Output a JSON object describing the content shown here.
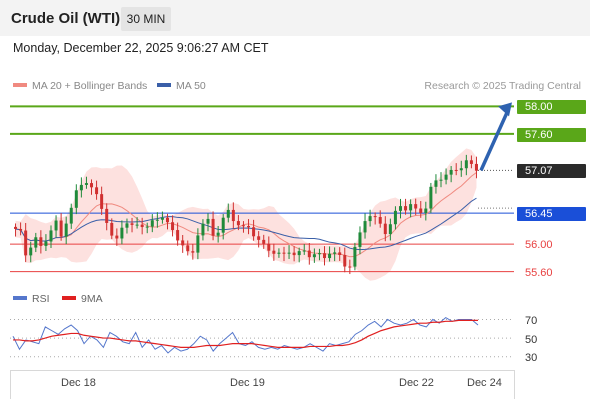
{
  "header": {
    "instrument": "Crude Oil (WTI)",
    "timeframe": "30 MIN"
  },
  "timestamp": "Monday, December 22, 2025 9:06:27 AM CET",
  "legend": {
    "ma20": {
      "label": "MA 20 + Bollinger Bands",
      "color": "#f08a80"
    },
    "ma50": {
      "label": "MA 50",
      "color": "#3a5fa8"
    },
    "credit": "Research © 2025 Trading Central"
  },
  "rsi_legend": {
    "rsi": {
      "label": "RSI",
      "color": "#5577cc"
    },
    "ma9": {
      "label": "9MA",
      "color": "#e02020"
    }
  },
  "colors": {
    "resistance": "#5aa719",
    "pivot": "#1a4fd8",
    "support": "#e84040",
    "current": "#2a2a2a",
    "arrow": "#2e62b0",
    "band": "#fde1df",
    "candle_up": "#1f8a3a",
    "candle_down": "#d03030"
  },
  "chart_data": [
    {
      "type": "candlestick",
      "title": "Crude Oil (WTI)",
      "timeframe": "30 MIN",
      "x_tick_labels": [
        "Dec 18",
        "Dec 19",
        "Dec 22",
        "Dec 24"
      ],
      "y_range": [
        55.45,
        58.15
      ],
      "current_price": "57.07",
      "target_arrow": {
        "from": 57.07,
        "to": 58.0
      },
      "levels": [
        {
          "label": "58.00",
          "value": 58.0,
          "kind": "resistance",
          "style": "badge"
        },
        {
          "label": "57.60",
          "value": 57.6,
          "kind": "resistance",
          "style": "badge"
        },
        {
          "label": "57.07",
          "value": 57.07,
          "kind": "current",
          "style": "badge"
        },
        {
          "label": "56.45",
          "value": 56.45,
          "kind": "pivot",
          "style": "badge"
        },
        {
          "label": "56.00",
          "value": 56.0,
          "kind": "support",
          "style": "text"
        },
        {
          "label": "55.60",
          "value": 55.6,
          "kind": "support",
          "style": "text"
        }
      ],
      "series": [
        {
          "name": "MA 20 + Bollinger Bands",
          "kind": "band_and_line"
        },
        {
          "name": "MA 50",
          "kind": "line"
        }
      ],
      "close_path": [
        [
          0,
          56.2
        ],
        [
          1,
          56.15
        ],
        [
          2,
          55.85
        ],
        [
          3,
          56.0
        ],
        [
          4,
          56.1
        ],
        [
          5,
          55.95
        ],
        [
          6,
          56.05
        ],
        [
          7,
          56.2
        ],
        [
          8,
          56.3
        ],
        [
          9,
          56.1
        ],
        [
          10,
          56.35
        ],
        [
          11,
          56.55
        ],
        [
          12,
          56.75
        ],
        [
          13,
          56.85
        ],
        [
          14,
          56.9
        ],
        [
          15,
          56.8
        ],
        [
          16,
          56.7
        ],
        [
          17,
          56.55
        ],
        [
          18,
          56.35
        ],
        [
          19,
          56.1
        ],
        [
          20,
          56.05
        ],
        [
          21,
          56.25
        ],
        [
          22,
          56.3
        ],
        [
          23,
          56.25
        ],
        [
          24,
          56.3
        ],
        [
          25,
          56.3
        ],
        [
          26,
          56.25
        ],
        [
          27,
          56.3
        ],
        [
          28,
          56.35
        ],
        [
          29,
          56.4
        ],
        [
          30,
          56.3
        ],
        [
          31,
          56.2
        ],
        [
          32,
          56.1
        ],
        [
          33,
          56.0
        ],
        [
          34,
          55.85
        ],
        [
          35,
          55.85
        ],
        [
          36,
          56.15
        ],
        [
          37,
          56.3
        ],
        [
          38,
          56.35
        ],
        [
          39,
          56.15
        ],
        [
          40,
          56.2
        ],
        [
          41,
          56.35
        ],
        [
          42,
          56.45
        ],
        [
          43,
          56.35
        ],
        [
          44,
          56.3
        ],
        [
          45,
          56.25
        ],
        [
          46,
          56.25
        ],
        [
          47,
          56.15
        ],
        [
          48,
          56.05
        ],
        [
          49,
          55.95
        ],
        [
          50,
          55.9
        ],
        [
          51,
          55.9
        ],
        [
          52,
          55.88
        ],
        [
          53,
          55.85
        ],
        [
          54,
          55.9
        ],
        [
          55,
          55.85
        ],
        [
          56,
          55.85
        ],
        [
          57,
          55.88
        ],
        [
          58,
          55.85
        ],
        [
          59,
          55.88
        ],
        [
          60,
          55.85
        ],
        [
          61,
          55.8
        ],
        [
          62,
          55.88
        ],
        [
          63,
          55.85
        ],
        [
          64,
          55.8
        ],
        [
          65,
          55.7
        ],
        [
          66,
          55.72
        ],
        [
          67,
          55.95
        ],
        [
          68,
          56.15
        ],
        [
          69,
          56.35
        ],
        [
          70,
          56.4
        ],
        [
          71,
          56.35
        ],
        [
          72,
          56.3
        ],
        [
          73,
          56.2
        ],
        [
          74,
          56.3
        ],
        [
          75,
          56.45
        ],
        [
          76,
          56.55
        ],
        [
          77,
          56.5
        ],
        [
          78,
          56.55
        ],
        [
          79,
          56.5
        ],
        [
          80,
          56.5
        ],
        [
          81,
          56.55
        ],
        [
          82,
          56.8
        ],
        [
          83,
          56.9
        ],
        [
          84,
          56.95
        ],
        [
          85,
          57.0
        ],
        [
          86,
          57.05
        ],
        [
          87,
          57.1
        ],
        [
          88,
          57.15
        ],
        [
          89,
          57.2
        ],
        [
          90,
          57.12
        ],
        [
          91,
          57.07
        ]
      ]
    },
    {
      "type": "line",
      "title": "RSI",
      "y_tick_labels": [
        "70",
        "50",
        "30"
      ],
      "y_range": [
        20,
        78
      ],
      "series": [
        {
          "name": "RSI",
          "values": [
            52,
            38,
            48,
            46,
            44,
            62,
            58,
            54,
            60,
            64,
            58,
            44,
            52,
            48,
            40,
            56,
            52,
            46,
            44,
            56,
            40,
            48,
            38,
            42,
            34,
            40,
            36,
            38,
            44,
            52,
            48,
            36,
            44,
            50,
            56,
            44,
            42,
            46,
            40,
            38,
            40,
            38,
            42,
            40,
            38,
            40,
            44,
            40,
            36,
            44,
            42,
            44,
            46,
            54,
            58,
            64,
            68,
            62,
            70,
            66,
            64,
            66,
            70,
            64,
            62,
            70,
            66,
            72,
            68,
            70,
            70,
            70,
            64
          ]
        },
        {
          "name": "9MA",
          "values": [
            48,
            48,
            47,
            47,
            48,
            50,
            52,
            53,
            54,
            55,
            55,
            53,
            52,
            51,
            50,
            50,
            49,
            48,
            47,
            47,
            46,
            45,
            44,
            43,
            42,
            41,
            40,
            40,
            40,
            41,
            42,
            42,
            42,
            43,
            44,
            44,
            44,
            44,
            43,
            42,
            41,
            40,
            40,
            40,
            40,
            40,
            41,
            41,
            41,
            41,
            42,
            42,
            43,
            45,
            48,
            52,
            55,
            58,
            60,
            62,
            63,
            64,
            65,
            66,
            66,
            67,
            67,
            68,
            68,
            69,
            69,
            69,
            69
          ]
        }
      ]
    }
  ]
}
